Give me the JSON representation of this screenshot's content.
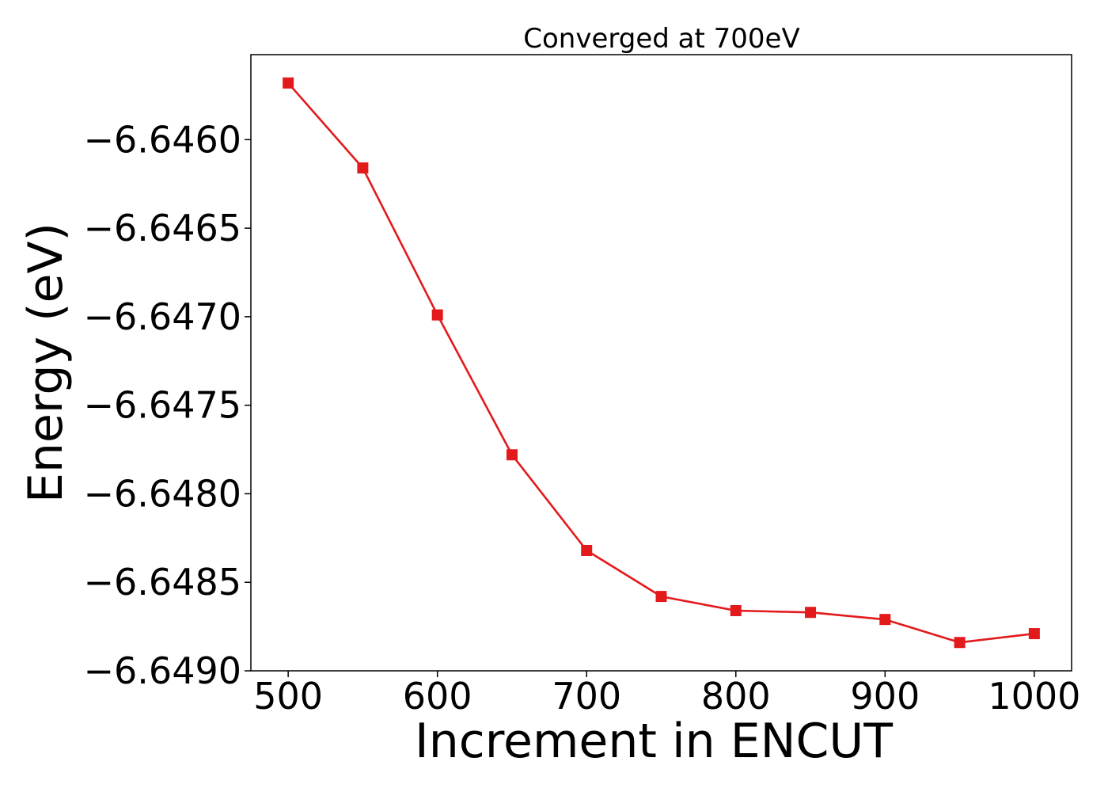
{
  "chart_data": {
    "type": "line",
    "title": "Converged at 700eV",
    "xlabel": "Increment in ENCUT",
    "ylabel": "Energy (eV)",
    "x": [
      500,
      550,
      600,
      650,
      700,
      750,
      800,
      850,
      900,
      950,
      1000
    ],
    "series": [
      {
        "values": [
          -6.64568,
          -6.64616,
          -6.64699,
          -6.64778,
          -6.64832,
          -6.64858,
          -6.64866,
          -6.64867,
          -6.64871,
          -6.64884,
          -6.64879
        ],
        "color": "#e31a1c",
        "marker": "square"
      }
    ],
    "xticks": [
      500,
      600,
      700,
      800,
      900,
      1000
    ],
    "xtick_labels": [
      "500",
      "600",
      "700",
      "800",
      "900",
      "1000"
    ],
    "yticks": [
      -6.646,
      -6.6465,
      -6.647,
      -6.6475,
      -6.648,
      -6.6485,
      -6.649
    ],
    "ytick_labels": [
      "−6.6460",
      "−6.6465",
      "−6.6470",
      "−6.6475",
      "−6.6480",
      "−6.6485",
      "−6.6490"
    ],
    "xlim": [
      475,
      1025
    ],
    "ylim": [
      -6.649,
      -6.64552
    ],
    "grid": false,
    "legend": "none"
  }
}
